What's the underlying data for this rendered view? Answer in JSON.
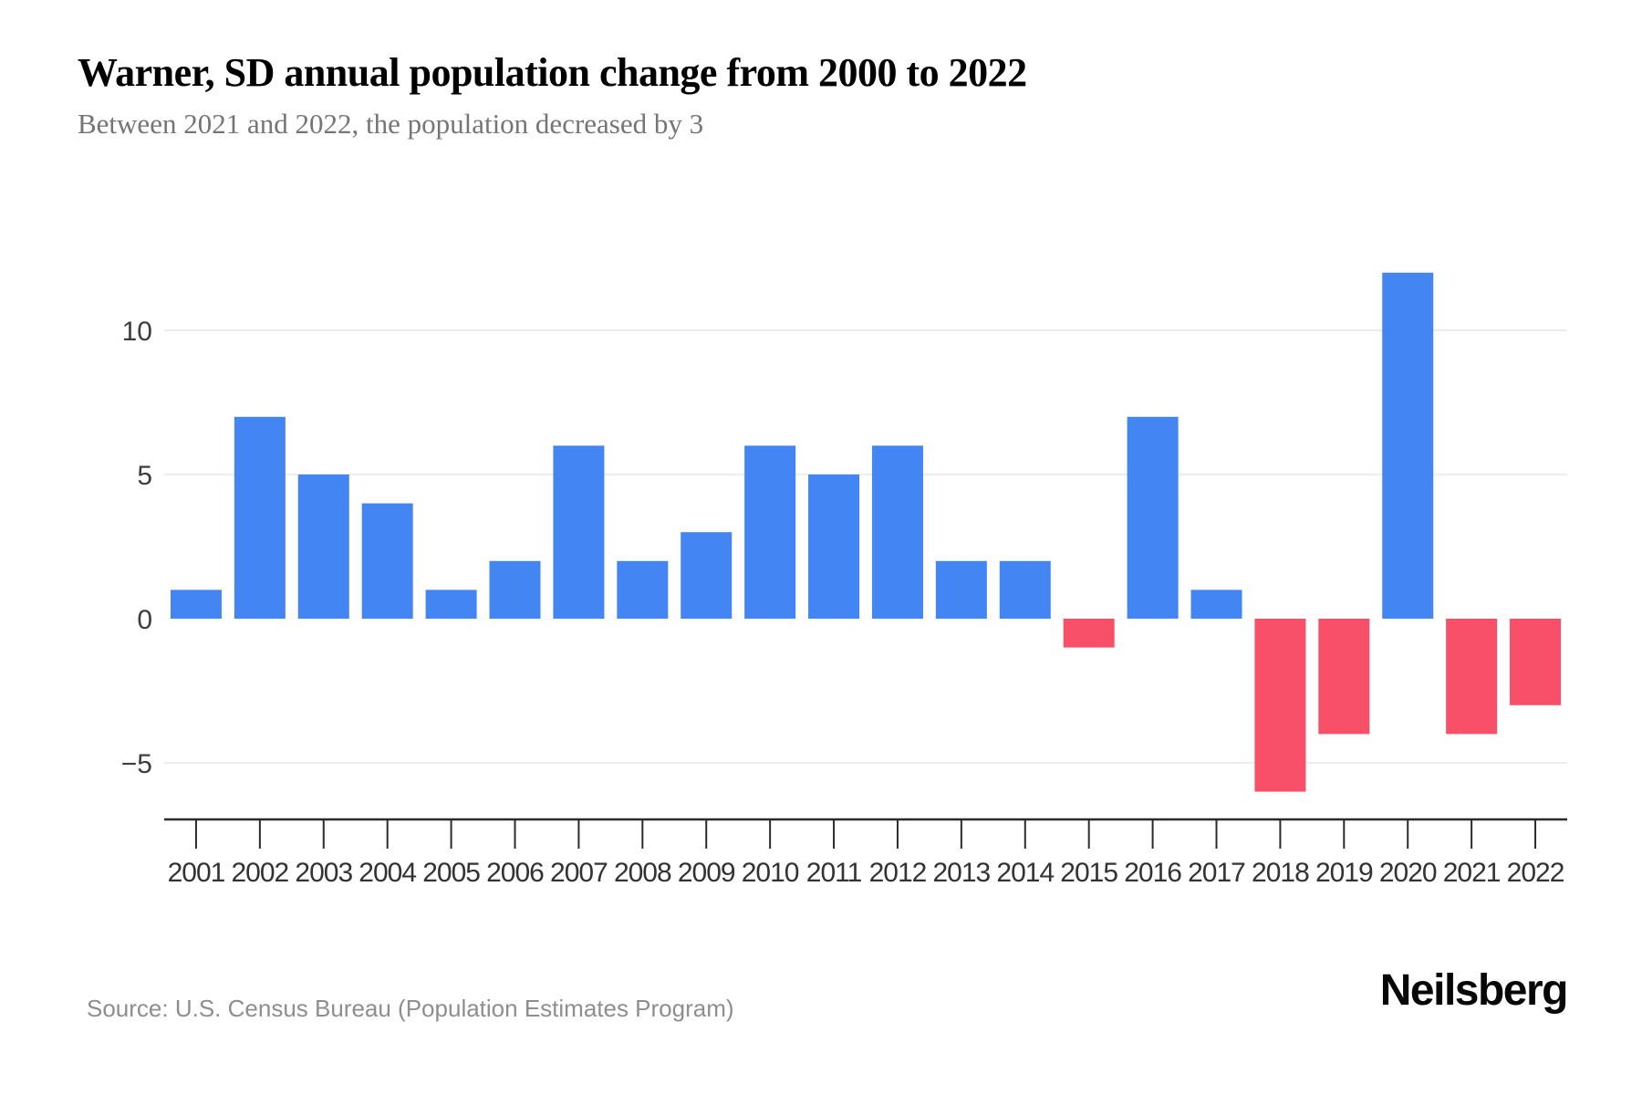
{
  "header": {
    "title": "Warner, SD annual population change from 2000 to 2022",
    "subtitle": "Between 2021 and 2022, the population decreased by 3"
  },
  "chart_data": {
    "type": "bar",
    "title": "Warner, SD annual population change from 2000 to 2022",
    "subtitle": "Between 2021 and 2022, the population decreased by 3",
    "categories": [
      "2001",
      "2002",
      "2003",
      "2004",
      "2005",
      "2006",
      "2007",
      "2008",
      "2009",
      "2010",
      "2011",
      "2012",
      "2013",
      "2014",
      "2015",
      "2016",
      "2017",
      "2018",
      "2019",
      "2020",
      "2021",
      "2022"
    ],
    "values": [
      1,
      7,
      5,
      4,
      1,
      2,
      6,
      2,
      3,
      6,
      5,
      6,
      2,
      2,
      -1,
      7,
      1,
      -6,
      -4,
      12,
      -4,
      -3
    ],
    "xlabel": "",
    "ylabel": "",
    "ylim": [
      -7,
      13.5
    ],
    "yticks": [
      {
        "label": "10",
        "value": 10
      },
      {
        "label": "5",
        "value": 5
      },
      {
        "label": "0",
        "value": 0
      },
      {
        "label": "−5",
        "value": -5
      }
    ],
    "gridline_values": [
      10,
      5,
      -5
    ],
    "grid": "horizontal-only",
    "legend": "none",
    "bar_colors": {
      "positive": "#4385F3",
      "negative": "#F9506A"
    }
  },
  "footer": {
    "source": "Source: U.S. Census Bureau (Population Estimates Program)",
    "brand": "Neilsberg"
  },
  "colors": {
    "positive_bar": "#4385F3",
    "negative_bar": "#F9506A",
    "gridline": "#ededed",
    "axis_line": "#2b2b2b",
    "tick_mark": "#2b2b2b",
    "x_tick_label": "#333333",
    "y_tick_label": "#3d3d3d",
    "title": "#000000",
    "subtitle": "#757575",
    "source": "#8e8e8e",
    "background": "#ffffff"
  }
}
